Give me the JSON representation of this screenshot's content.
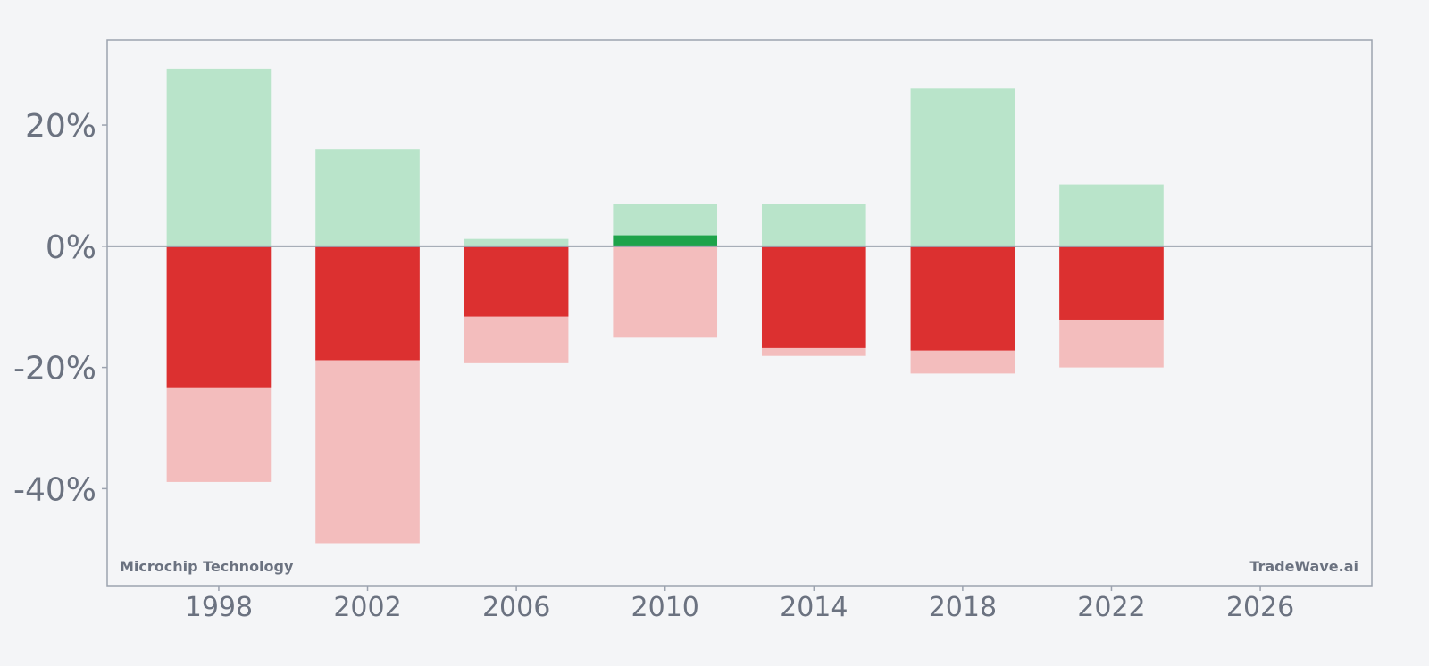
{
  "chart_data": {
    "type": "bar",
    "title": "",
    "xlabel": "",
    "ylabel": "",
    "xlim": [
      1995,
      2029
    ],
    "ylim": [
      -56,
      34
    ],
    "y_ticks": [
      20,
      0,
      -20,
      -40
    ],
    "y_tick_labels": [
      "20%",
      "0%",
      "-20%",
      "-40%"
    ],
    "x_ticks": [
      1998,
      2002,
      2006,
      2010,
      2014,
      2018,
      2022,
      2026
    ],
    "x_tick_labels": [
      "1998",
      "2002",
      "2006",
      "2010",
      "2014",
      "2018",
      "2022",
      "2026"
    ],
    "grid": false,
    "bars": [
      {
        "year": 1998,
        "max_up": 29.3,
        "max_down": -38.9,
        "close": -23.4
      },
      {
        "year": 2002,
        "max_up": 16.0,
        "max_down": -49.0,
        "close": -18.8
      },
      {
        "year": 2006,
        "max_up": 1.2,
        "max_down": -19.3,
        "close": -11.6
      },
      {
        "year": 2010,
        "max_up": 7.0,
        "max_down": -15.1,
        "close": 1.8
      },
      {
        "year": 2014,
        "max_up": 6.9,
        "max_down": -18.1,
        "close": -16.8
      },
      {
        "year": 2018,
        "max_up": 26.0,
        "max_down": -21.0,
        "close": -17.2
      },
      {
        "year": 2022,
        "max_up": 10.2,
        "max_down": -20.0,
        "close": -12.1
      }
    ],
    "colors": {
      "up_range": "#b9e4ca",
      "down_range": "#f3bdbd",
      "close_up": "#1ea34a",
      "close_down": "#dc3030",
      "axis": "#9ca3af",
      "text": "#6b7280"
    }
  },
  "labels": {
    "company": "Microchip Technology",
    "brand": "TradeWave.ai"
  }
}
